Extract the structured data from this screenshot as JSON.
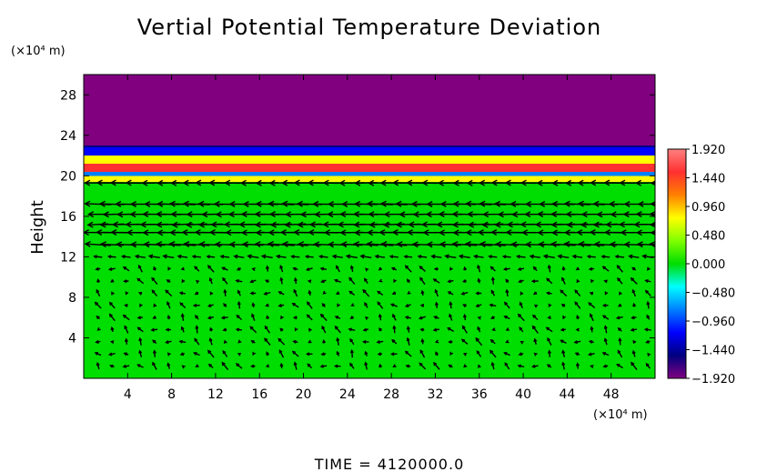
{
  "chart_data": {
    "type": "heatmap",
    "title": "Vertial Potential Temperature Deviation",
    "xlabel": "",
    "ylabel": "Height",
    "x_unit": "(×10⁴ m)",
    "y_unit": "(×10⁴ m)",
    "xlim": [
      0,
      52
    ],
    "ylim": [
      0,
      30
    ],
    "x_ticks": [
      4,
      8,
      12,
      16,
      20,
      24,
      28,
      32,
      36,
      40,
      44,
      48
    ],
    "y_ticks": [
      4,
      8,
      12,
      16,
      20,
      24,
      28
    ],
    "colorbar": {
      "min": -1.92,
      "max": 1.92,
      "tick_labels": [
        "1.920",
        "1.440",
        "0.960",
        "0.480",
        "0.000",
        "−0.480",
        "−0.960",
        "−1.440",
        "−1.920"
      ],
      "tick_values": [
        1.92,
        1.44,
        0.96,
        0.48,
        0.0,
        -0.48,
        -0.96,
        -1.44,
        -1.92
      ],
      "colors": [
        "#ff8080",
        "#ff3030",
        "#ff8000",
        "#ffff00",
        "#80ff00",
        "#00dd00",
        "#00ffff",
        "#0080ff",
        "#0000ff",
        "#000080",
        "#800080"
      ]
    },
    "field_bands": [
      {
        "y_from": 0,
        "y_to": 19.4,
        "value": 0.1
      },
      {
        "y_from": 19.4,
        "y_to": 20.0,
        "value": 0.9
      },
      {
        "y_from": 20.0,
        "y_to": 20.4,
        "value": -0.7
      },
      {
        "y_from": 20.4,
        "y_to": 21.2,
        "value": 1.6
      },
      {
        "y_from": 21.2,
        "y_to": 22.0,
        "value": 0.6
      },
      {
        "y_from": 22.0,
        "y_to": 22.8,
        "value": -1.0
      },
      {
        "y_from": 22.8,
        "y_to": 23.0,
        "value": -1.6
      },
      {
        "y_from": 23.0,
        "y_to": 30,
        "value": -1.92
      }
    ],
    "wind_vectors": [
      {
        "y": 19.3,
        "u": -2.6,
        "w": 0.0
      },
      {
        "y": 17.2,
        "u": -2.2,
        "w": 0.05
      },
      {
        "y": 16.2,
        "u": -2.0,
        "w": 0.0
      },
      {
        "y": 15.2,
        "u": -2.4,
        "w": -0.05
      },
      {
        "y": 14.4,
        "u": -2.6,
        "w": 0.0
      },
      {
        "y": 13.2,
        "u": -2.2,
        "w": 0.1
      },
      {
        "y": 12.0,
        "u": -0.9,
        "w": 0.1
      },
      {
        "y": 8.0,
        "u": -0.5,
        "w": 0.2
      },
      {
        "y": 4.0,
        "u": -0.5,
        "w": 0.25
      }
    ],
    "time_label": "TIME  =  4120000.0",
    "grid": false
  }
}
